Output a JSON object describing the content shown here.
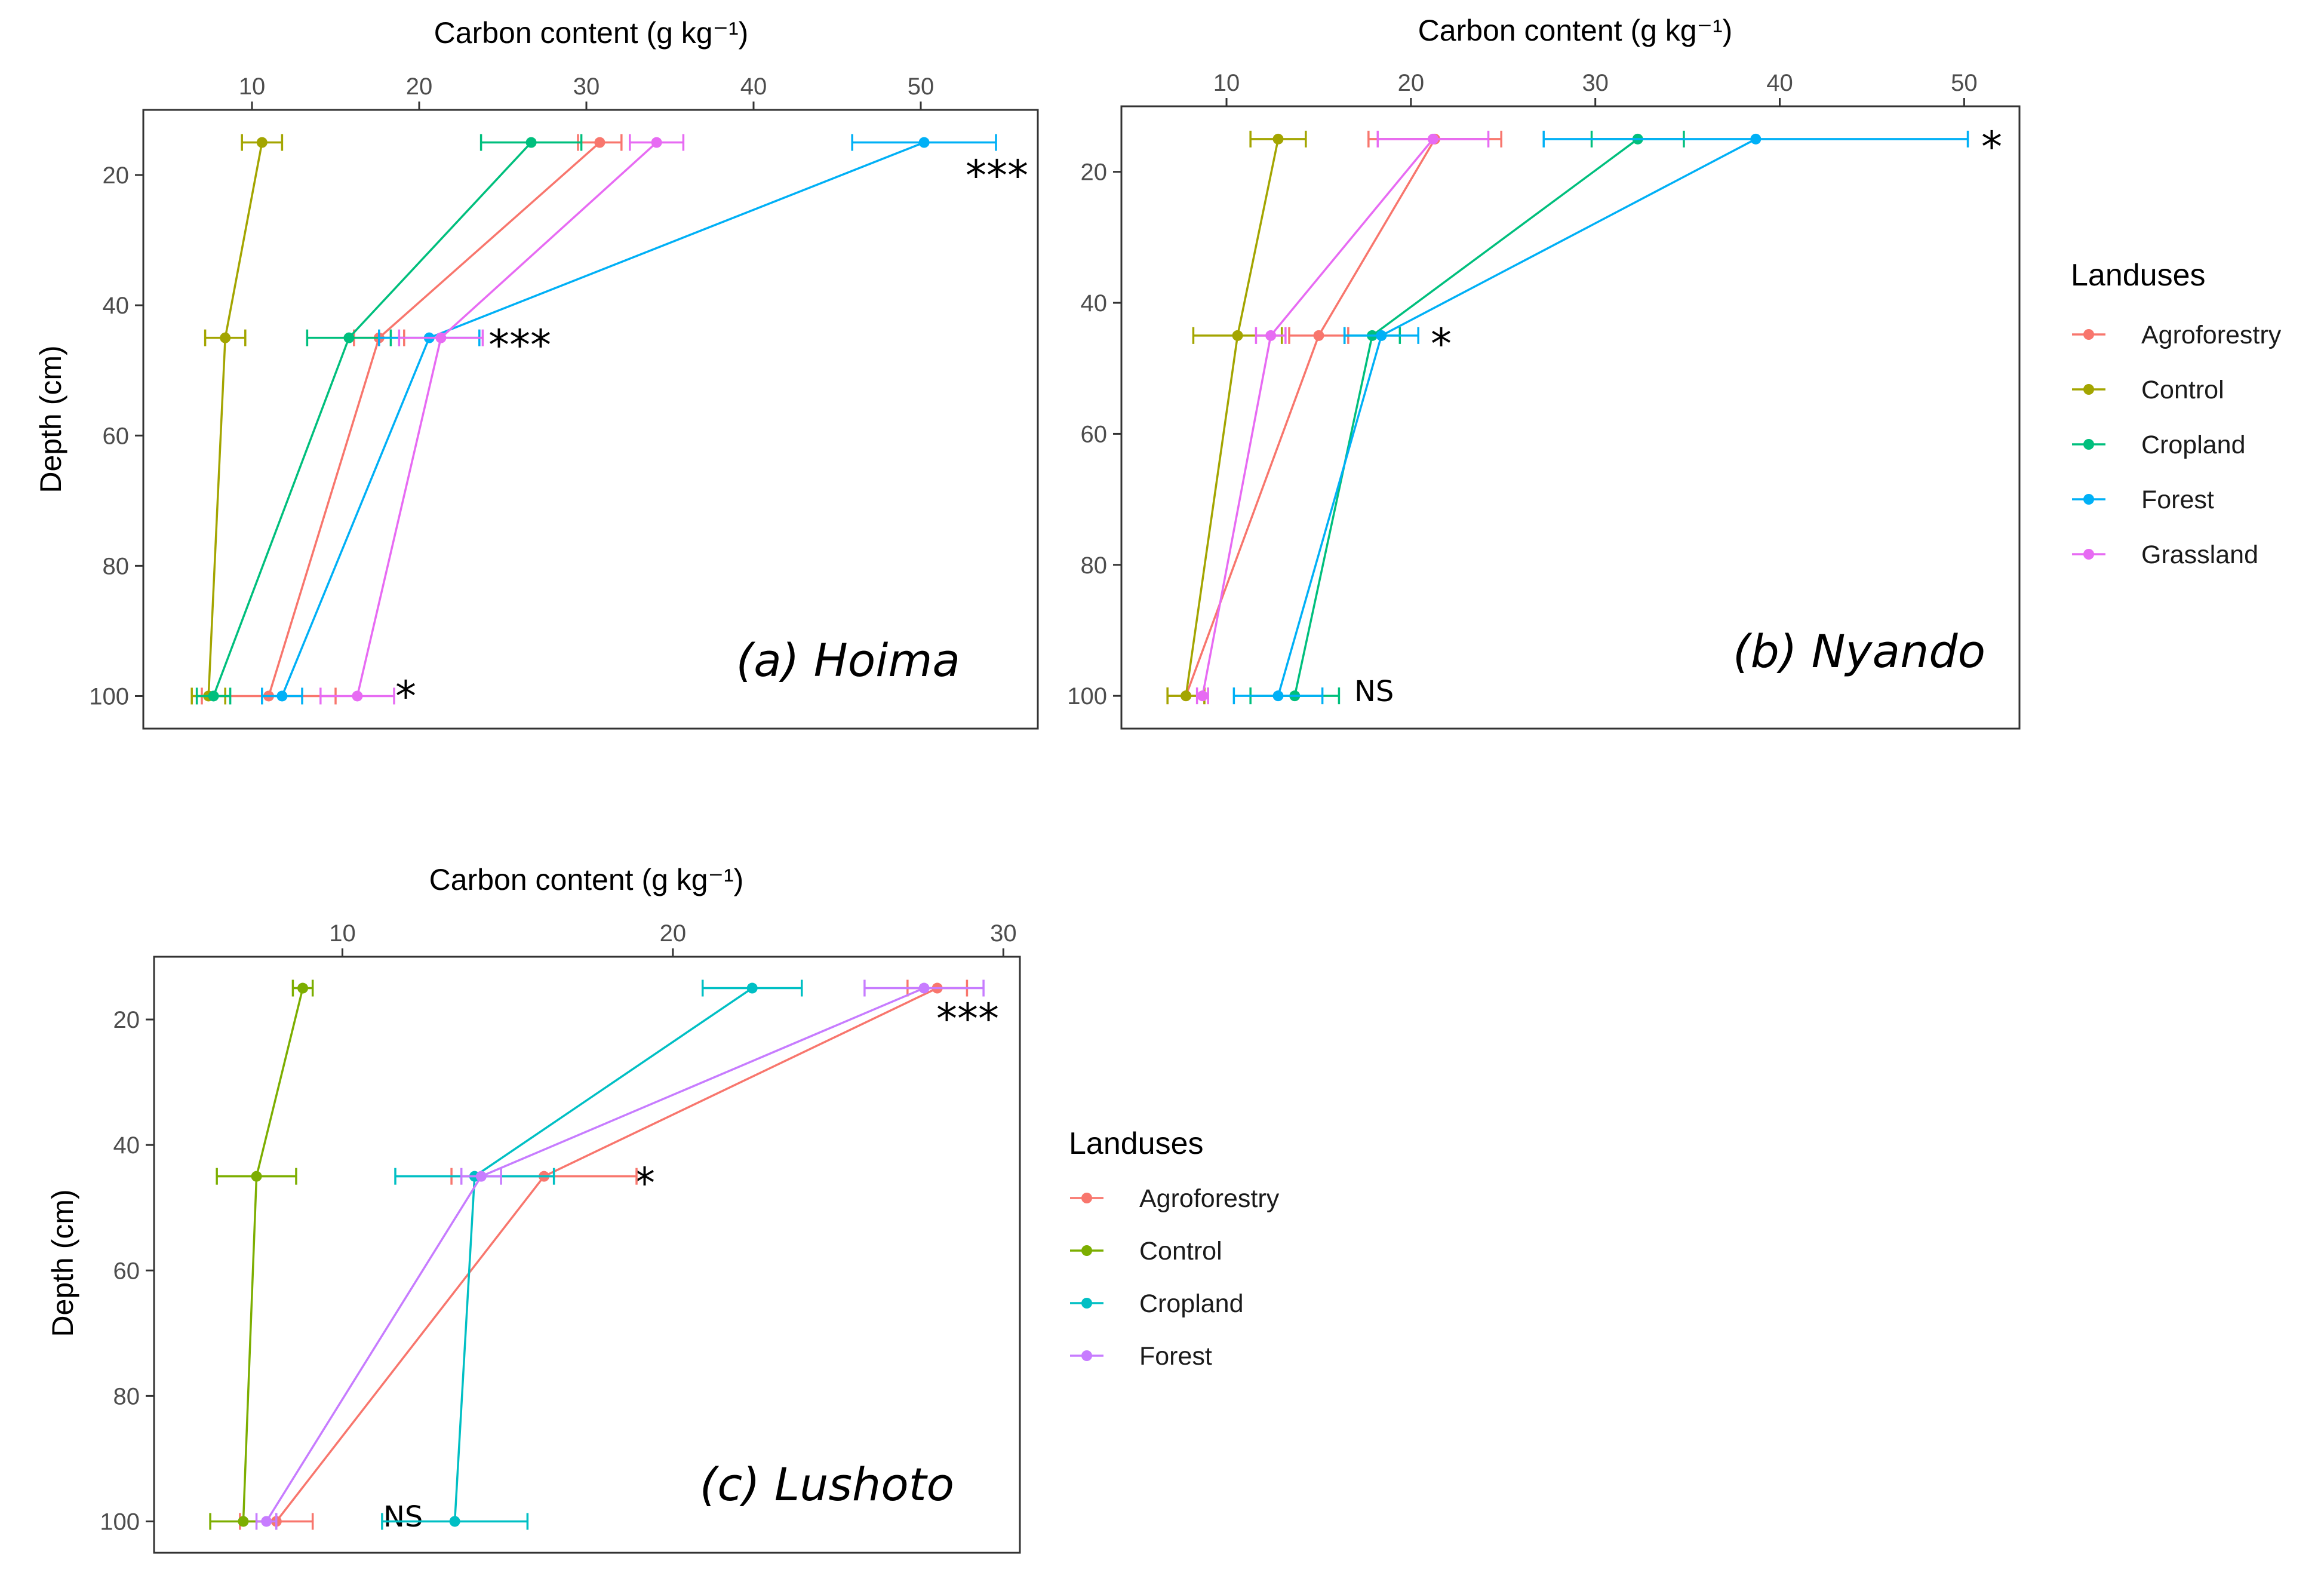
{
  "colors": {
    "Agroforestry": "#F8766D",
    "Control": "#A3A500",
    "Cropland": "#00BF7D",
    "Forest": "#00B0F6",
    "Grassland": "#E76BF3",
    "Agroforestry_c": "#F8766D",
    "Control_c": "#7CAE00",
    "Cropland_c": "#00BFC4",
    "Forest_c": "#C77CFF"
  },
  "chart_data": [
    {
      "type": "line",
      "title": "(a) Hoima",
      "xlabel": "Carbon content (g kg⁻¹)",
      "ylabel": "Depth (cm)",
      "x_axis_position": "top",
      "y_reversed": true,
      "xlim": [
        3.5,
        57
      ],
      "ylim": [
        10,
        105
      ],
      "xticks": [
        10,
        20,
        30,
        40,
        50
      ],
      "yticks": [
        20,
        40,
        60,
        80,
        100
      ],
      "grid": false,
      "depths": [
        15,
        45,
        100
      ],
      "series": [
        {
          "name": "Agroforestry",
          "values": [
            30.8,
            17.6,
            11.0
          ],
          "errors": [
            1.3,
            1.5,
            4.0
          ]
        },
        {
          "name": "Control",
          "values": [
            10.6,
            8.4,
            7.4
          ],
          "errors": [
            1.2,
            1.2,
            1.0
          ]
        },
        {
          "name": "Cropland",
          "values": [
            26.7,
            15.8,
            7.7
          ],
          "errors": [
            3.0,
            2.5,
            1.0
          ]
        },
        {
          "name": "Forest",
          "values": [
            50.2,
            20.6,
            11.8
          ],
          "errors": [
            4.3,
            3.0,
            1.2
          ]
        },
        {
          "name": "Grassland",
          "values": [
            34.2,
            21.3,
            16.3
          ],
          "errors": [
            1.6,
            2.5,
            2.2
          ]
        }
      ],
      "annotations": [
        {
          "text": "***",
          "depth": 15
        },
        {
          "text": "***",
          "depth": 45
        },
        {
          "text": "*",
          "depth": 100
        }
      ]
    },
    {
      "type": "line",
      "title": "(b) Nyando",
      "xlabel": "Carbon content (g kg⁻¹)",
      "ylabel": "",
      "x_axis_position": "top",
      "y_reversed": true,
      "xlim": [
        4.3,
        53
      ],
      "ylim": [
        10,
        105
      ],
      "xticks": [
        10,
        20,
        30,
        40,
        50
      ],
      "yticks": [
        20,
        40,
        60,
        80,
        100
      ],
      "grid": false,
      "depths": [
        15,
        45,
        100
      ],
      "series": [
        {
          "name": "Agroforestry",
          "values": [
            21.3,
            15.0,
            7.8
          ],
          "errors": [
            3.6,
            1.6,
            1.0
          ]
        },
        {
          "name": "Control",
          "values": [
            12.8,
            10.6,
            7.8
          ],
          "errors": [
            1.5,
            2.4,
            1.0
          ]
        },
        {
          "name": "Cropland",
          "values": [
            32.3,
            17.9,
            13.7
          ],
          "errors": [
            2.5,
            1.5,
            2.4
          ]
        },
        {
          "name": "Forest",
          "values": [
            38.7,
            18.4,
            12.8
          ],
          "errors": [
            11.5,
            2.0,
            2.4
          ]
        },
        {
          "name": "Grassland",
          "values": [
            21.2,
            12.4,
            8.7
          ],
          "errors": [
            3.0,
            0.8,
            0.3
          ]
        }
      ],
      "annotations": [
        {
          "text": "*",
          "depth": 15
        },
        {
          "text": "*",
          "depth": 45
        },
        {
          "text": "NS",
          "depth": 100
        }
      ]
    },
    {
      "type": "line",
      "title": "(c) Lushoto",
      "xlabel": "Carbon content (g kg⁻¹)",
      "ylabel": "Depth (cm)",
      "x_axis_position": "top",
      "y_reversed": true,
      "xlim": [
        4.3,
        30.5
      ],
      "ylim": [
        10,
        105
      ],
      "xticks": [
        10,
        20,
        30
      ],
      "yticks": [
        20,
        40,
        60,
        80,
        100
      ],
      "grid": false,
      "depths": [
        15,
        45,
        100
      ],
      "series": [
        {
          "name": "Agroforestry",
          "values": [
            28.0,
            16.1,
            8.0
          ],
          "errors": [
            0.9,
            2.8,
            1.1
          ]
        },
        {
          "name": "Control",
          "values": [
            8.8,
            7.4,
            7.0
          ],
          "errors": [
            0.3,
            1.2,
            1.0
          ]
        },
        {
          "name": "Cropland",
          "values": [
            22.4,
            14.0,
            13.4
          ],
          "errors": [
            1.5,
            2.4,
            2.2
          ]
        },
        {
          "name": "Forest",
          "values": [
            27.6,
            14.2,
            7.7
          ],
          "errors": [
            1.8,
            0.6,
            0.3
          ]
        }
      ],
      "annotations": [
        {
          "text": "***",
          "depth": 15
        },
        {
          "text": "*",
          "depth": 45
        },
        {
          "text": "NS",
          "depth": 100
        }
      ]
    }
  ],
  "legends": [
    {
      "title": "Landuses",
      "items": [
        "Agroforestry",
        "Control",
        "Cropland",
        "Forest",
        "Grassland"
      ]
    },
    {
      "title": "Landuses",
      "items": [
        "Agroforestry",
        "Control",
        "Cropland",
        "Forest"
      ]
    }
  ]
}
